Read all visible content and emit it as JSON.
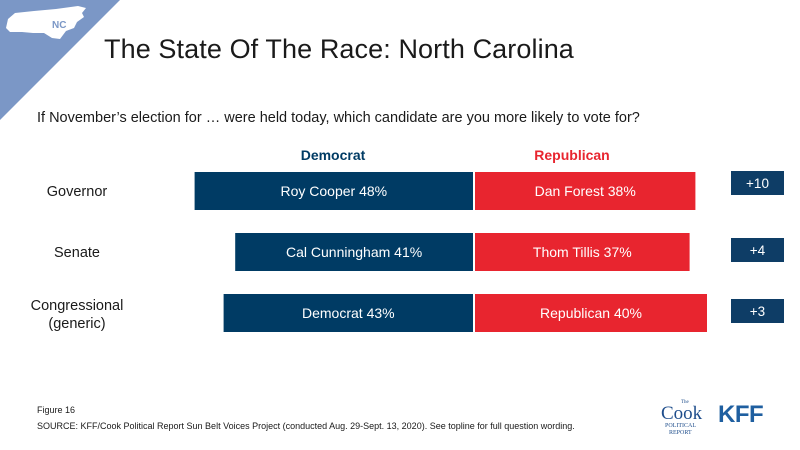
{
  "badge": {
    "state_label": "NC"
  },
  "title": "The State Of The Race: North Carolina",
  "question": "If November’s election for … were held today, which candidate are you more likely to vote for?",
  "colors": {
    "democrat": "#003b64",
    "republican": "#e8252f",
    "margin_box": "#0e3d66",
    "badge_bg": "#7b97c6"
  },
  "chart_data": {
    "type": "bar",
    "orientation": "horizontal",
    "stacked_diverging": true,
    "series_names": [
      "Democrat",
      "Republican"
    ],
    "rows": [
      {
        "category": "Governor",
        "dem_label": "Roy Cooper 48%",
        "dem_value": 48,
        "rep_label": "Dan Forest 38%",
        "rep_value": 38,
        "margin": "+10"
      },
      {
        "category": "Senate",
        "dem_label": "Cal Cunningham 41%",
        "dem_value": 41,
        "rep_label": "Thom Tillis 37%",
        "rep_value": 37,
        "margin": "+4"
      },
      {
        "category": "Congressional (generic)",
        "category_lines": [
          "Congressional",
          "(generic)"
        ],
        "dem_label": "Democrat 43%",
        "dem_value": 43,
        "rep_label": "Republican 40%",
        "rep_value": 40,
        "margin": "+3"
      }
    ]
  },
  "footer": {
    "figure": "Figure 16",
    "source": "SOURCE: KFF/Cook Political Report Sun Belt Voices Project (conducted Aug. 29-Sept. 13, 2020). See topline for full question wording."
  },
  "logos": {
    "cook_small": "The",
    "cook_main": "Cook",
    "cook_line1": "POLITICAL",
    "cook_line2": "REPORT",
    "kff": "KFF"
  }
}
